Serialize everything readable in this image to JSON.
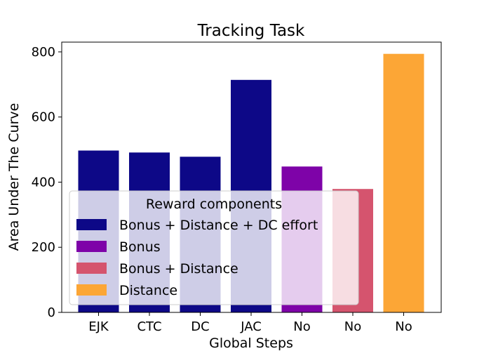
{
  "chart_data": {
    "type": "bar",
    "title": "Tracking Task",
    "xlabel": "Global Steps",
    "ylabel": "Area Under The Curve",
    "ylim": [
      0,
      830
    ],
    "yticks": [
      0,
      200,
      400,
      600,
      800
    ],
    "categories": [
      "EJK",
      "CTC",
      "DC",
      "JAC",
      "No",
      "No",
      "No"
    ],
    "values": [
      497,
      491,
      478,
      714,
      448,
      379,
      794
    ],
    "bar_series": [
      "Bonus + Distance + DC effort",
      "Bonus + Distance + DC effort",
      "Bonus + Distance + DC effort",
      "Bonus + Distance + DC effort",
      "Bonus",
      "Bonus + Distance",
      "Distance"
    ],
    "grid": false,
    "legend": {
      "title": "Reward components",
      "placement": "lower-left",
      "entries": [
        {
          "name": "Bonus + Distance + DC effort",
          "color": "#0d0887"
        },
        {
          "name": "Bonus",
          "color": "#7e03a8"
        },
        {
          "name": "Bonus + Distance",
          "color": "#d5546e"
        },
        {
          "name": "Distance",
          "color": "#fca636"
        }
      ]
    }
  }
}
